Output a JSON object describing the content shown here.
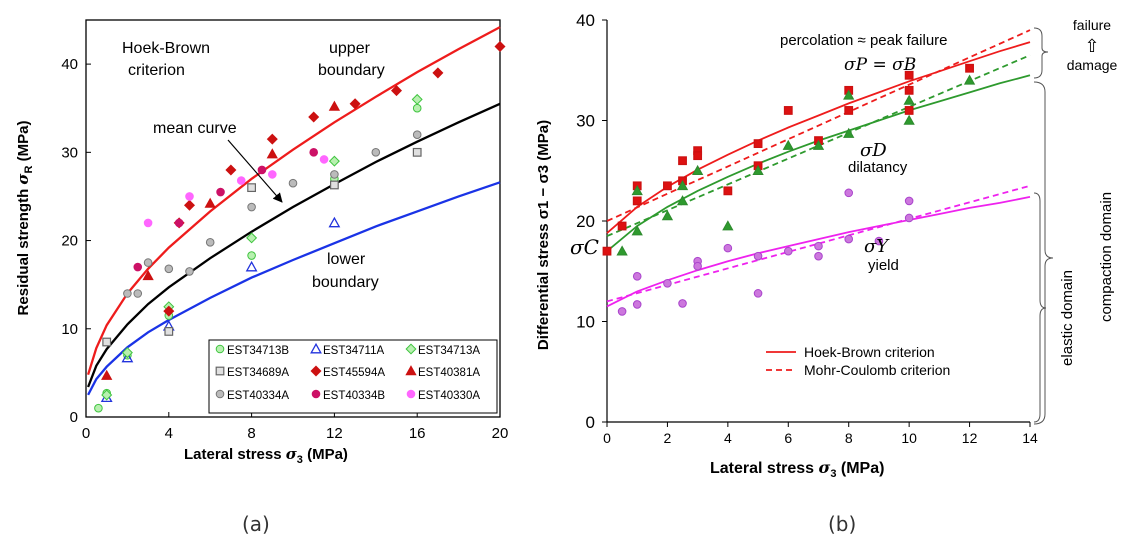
{
  "panel_labels": [
    "(a)",
    "(b)"
  ],
  "chart_data": [
    {
      "type": "scatter",
      "xlabel": "Lateral stress σ3 (MPa)",
      "ylabel": "Residual strength σR (MPa)",
      "xlim": [
        0,
        20
      ],
      "ylim": [
        0,
        45
      ],
      "x_ticks": [
        0,
        4,
        8,
        12,
        16,
        20
      ],
      "y_ticks": [
        0,
        10,
        20,
        30,
        40
      ],
      "grid": false,
      "legend_position": "bottom-right",
      "annotations": {
        "hoek_brown_1": "Hoek-Brown",
        "hoek_brown_2": "criterion",
        "upper_1": "upper",
        "upper_2": "boundary",
        "mean": "mean curve",
        "lower_1": "lower",
        "lower_2": "boundary"
      },
      "curves": [
        {
          "role": "upper boundary",
          "color": "#ee1c1c",
          "x": [
            0.1,
            0.5,
            1,
            2,
            3,
            4,
            6,
            8,
            10,
            12,
            14,
            16,
            18,
            20
          ],
          "y": [
            4.8,
            7.8,
            10.4,
            14.0,
            16.8,
            19.2,
            23.3,
            27.0,
            30.3,
            33.4,
            36.3,
            39.1,
            41.7,
            44.2
          ]
        },
        {
          "role": "mean curve",
          "color": "#000000",
          "x": [
            0.1,
            0.5,
            1,
            2,
            3,
            4,
            6,
            8,
            10,
            12,
            14,
            16,
            18,
            20
          ],
          "y": [
            3.4,
            5.8,
            7.7,
            10.5,
            12.8,
            14.7,
            18.0,
            21.0,
            23.8,
            26.4,
            28.9,
            31.2,
            33.4,
            35.5
          ]
        },
        {
          "role": "lower boundary",
          "color": "#1a33e6",
          "x": [
            0.1,
            0.5,
            1,
            2,
            3,
            4,
            6,
            8,
            10,
            12,
            14,
            16,
            18,
            20
          ],
          "y": [
            2.5,
            4.3,
            5.7,
            7.9,
            9.6,
            11.0,
            13.5,
            15.8,
            17.8,
            19.7,
            21.6,
            23.3,
            25.0,
            26.6
          ]
        }
      ],
      "series": [
        {
          "name": "EST34713B",
          "marker": "circle",
          "color": "#3fc43f",
          "fill": "#b8f0b0",
          "points": [
            [
              0.6,
              1.0
            ],
            [
              1,
              2.7
            ],
            [
              2,
              7.0
            ],
            [
              4,
              11.5
            ],
            [
              8,
              18.3
            ],
            [
              12,
              27.0
            ],
            [
              16,
              35.0
            ]
          ]
        },
        {
          "name": "EST34711A",
          "marker": "triangle-open",
          "color": "#2233dd",
          "fill": "none",
          "points": [
            [
              1,
              2.2
            ],
            [
              2,
              6.7
            ],
            [
              4,
              10.3
            ],
            [
              8,
              17.0
            ],
            [
              12,
              22.0
            ]
          ]
        },
        {
          "name": "EST34713A",
          "marker": "diamond",
          "color": "#3fc43f",
          "fill": "#b8f0b0",
          "points": [
            [
              1,
              2.5
            ],
            [
              2,
              7.3
            ],
            [
              4,
              12.5
            ],
            [
              8,
              20.3
            ],
            [
              12,
              29.0
            ],
            [
              16,
              36.0
            ]
          ]
        },
        {
          "name": "EST34689A",
          "marker": "square",
          "color": "#666666",
          "fill": "#e0e0e0",
          "points": [
            [
              1,
              8.5
            ],
            [
              4,
              9.7
            ],
            [
              8,
              26.0
            ],
            [
              12,
              26.3
            ],
            [
              16,
              30.0
            ]
          ]
        },
        {
          "name": "EST45594A",
          "marker": "diamond",
          "color": "#cc1111",
          "fill": "#cc1111",
          "points": [
            [
              4,
              12.0
            ],
            [
              4.5,
              22.0
            ],
            [
              5,
              24.0
            ],
            [
              7,
              28.0
            ],
            [
              9,
              31.5
            ],
            [
              11,
              34.0
            ],
            [
              13,
              35.5
            ],
            [
              15,
              37.0
            ],
            [
              17,
              39.0
            ],
            [
              20,
              42.0
            ]
          ]
        },
        {
          "name": "EST40381A",
          "marker": "triangle",
          "color": "#cc1111",
          "fill": "#cc1111",
          "points": [
            [
              1,
              4.7
            ],
            [
              3,
              16.0
            ],
            [
              6,
              24.2
            ],
            [
              9,
              29.8
            ],
            [
              12,
              35.2
            ]
          ]
        },
        {
          "name": "EST40334A",
          "marker": "circle",
          "color": "#777777",
          "fill": "#bbbbbb",
          "points": [
            [
              2,
              14.0
            ],
            [
              2.5,
              14.0
            ],
            [
              3,
              17.5
            ],
            [
              4,
              16.8
            ],
            [
              5,
              16.5
            ],
            [
              6,
              19.8
            ],
            [
              8,
              23.8
            ],
            [
              10,
              26.5
            ],
            [
              12,
              27.5
            ],
            [
              14,
              30.0
            ],
            [
              16,
              32.0
            ]
          ]
        },
        {
          "name": "EST40334B",
          "marker": "circle",
          "color": "#cc1166",
          "fill": "#cc1166",
          "points": [
            [
              2.5,
              17.0
            ],
            [
              4.5,
              22.0
            ],
            [
              6.5,
              25.5
            ],
            [
              8.5,
              28.0
            ],
            [
              11,
              30.0
            ]
          ]
        },
        {
          "name": "EST40330A",
          "marker": "circle",
          "color": "#ff66ff",
          "fill": "#ff66ff",
          "points": [
            [
              3,
              22.0
            ],
            [
              5,
              25.0
            ],
            [
              7.5,
              26.8
            ],
            [
              9,
              27.5
            ],
            [
              11.5,
              29.2
            ]
          ]
        }
      ]
    },
    {
      "type": "scatter",
      "xlabel": "Lateral stress σ3 (MPa)",
      "ylabel": "Differential stress σ1 − σ3 (MPa)",
      "xlim": [
        0,
        14
      ],
      "ylim": [
        0,
        40
      ],
      "x_ticks": [
        0,
        2,
        4,
        6,
        8,
        10,
        12,
        14
      ],
      "y_ticks": [
        0,
        10,
        20,
        30,
        40
      ],
      "grid": false,
      "legend_position": "bottom-center",
      "legend": [
        {
          "label": "Hoek-Brown criterion",
          "style": "solid",
          "color": "#ee1c1c"
        },
        {
          "label": "Mohr-Coulomb criterion",
          "style": "dashed",
          "color": "#ee1c1c"
        }
      ],
      "annotations": {
        "percolation": "percolation ≈ peak failure",
        "sigma_p": "σP = σB",
        "sigma_d": "σD",
        "dilatancy": "dilatancy",
        "sigma_y": "σY",
        "yield": "yield",
        "sigma_c": "σC",
        "failure": "failure",
        "arrow": "⇧",
        "damage": "damage",
        "compaction_domain": "compaction domain",
        "elastic_domain": "elastic domain"
      },
      "curves": [
        {
          "role": "peak Hoek-Brown",
          "style": "solid",
          "color": "#ee1c1c",
          "x": [
            0,
            1,
            2,
            3,
            4,
            5,
            6,
            7,
            8,
            9,
            10,
            11,
            12,
            13,
            14
          ],
          "y": [
            18.8,
            21.4,
            23.4,
            25.1,
            26.6,
            28.0,
            29.3,
            30.5,
            31.7,
            32.8,
            33.9,
            34.9,
            35.9,
            36.9,
            37.8
          ]
        },
        {
          "role": "peak Mohr-Coulomb",
          "style": "dashed",
          "color": "#ee1c1c",
          "x": [
            0,
            14
          ],
          "y": [
            20.0,
            39.0
          ]
        },
        {
          "role": "dilatancy Hoek-Brown",
          "style": "solid",
          "color": "#2e9a2e",
          "x": [
            0,
            1,
            2,
            3,
            4,
            5,
            6,
            7,
            8,
            9,
            10,
            11,
            12,
            13,
            14
          ],
          "y": [
            17.0,
            19.5,
            21.4,
            23.0,
            24.4,
            25.7,
            26.9,
            28.0,
            29.0,
            30.0,
            31.0,
            31.9,
            32.8,
            33.7,
            34.5
          ]
        },
        {
          "role": "dilatancy Mohr-Coulomb",
          "style": "dashed",
          "color": "#2e9a2e",
          "x": [
            0,
            14
          ],
          "y": [
            18.5,
            36.5
          ]
        },
        {
          "role": "yield Hoek-Brown",
          "style": "solid",
          "color": "#ee22ee",
          "x": [
            0,
            1,
            2,
            3,
            4,
            5,
            6,
            7,
            8,
            9,
            10,
            11,
            12,
            13,
            14
          ],
          "y": [
            11.5,
            13.0,
            14.1,
            15.1,
            16.0,
            16.8,
            17.5,
            18.2,
            18.9,
            19.5,
            20.1,
            20.7,
            21.3,
            21.8,
            22.4
          ]
        },
        {
          "role": "yield Mohr-Coulomb",
          "style": "dashed",
          "color": "#ee22ee",
          "x": [
            0,
            14
          ],
          "y": [
            12.0,
            23.5
          ]
        }
      ],
      "series": [
        {
          "role": "peak",
          "marker": "square",
          "color": "#cc1111",
          "fill": "#dd1111",
          "points": [
            [
              0,
              17.0
            ],
            [
              0.5,
              19.5
            ],
            [
              1,
              23.5
            ],
            [
              1,
              22.0
            ],
            [
              2,
              23.5
            ],
            [
              2.5,
              26.0
            ],
            [
              2.5,
              24.0
            ],
            [
              3,
              27.0
            ],
            [
              3,
              26.5
            ],
            [
              4,
              23.0
            ],
            [
              5,
              27.7
            ],
            [
              5,
              25.5
            ],
            [
              6,
              31.0
            ],
            [
              7,
              28.0
            ],
            [
              8,
              33.0
            ],
            [
              8,
              31.0
            ],
            [
              10,
              34.5
            ],
            [
              10,
              33.0
            ],
            [
              10,
              31.0
            ],
            [
              12,
              35.2
            ]
          ]
        },
        {
          "role": "dilatancy",
          "marker": "triangle",
          "color": "#2e8a2e",
          "fill": "#2e9a2e",
          "points": [
            [
              0.5,
              17.0
            ],
            [
              1,
              23.0
            ],
            [
              1,
              19.0
            ],
            [
              2,
              20.5
            ],
            [
              2.5,
              22.0
            ],
            [
              2.5,
              23.5
            ],
            [
              3,
              25.0
            ],
            [
              4,
              19.5
            ],
            [
              5,
              25.0
            ],
            [
              6,
              27.5
            ],
            [
              7,
              27.5
            ],
            [
              8,
              28.7
            ],
            [
              8,
              32.5
            ],
            [
              10,
              32.0
            ],
            [
              10,
              30.0
            ],
            [
              12,
              34.0
            ]
          ]
        },
        {
          "role": "yield",
          "marker": "circle",
          "color": "#aa44cc",
          "fill": "#cc77dd",
          "points": [
            [
              0.5,
              11.0
            ],
            [
              1,
              14.5
            ],
            [
              1,
              11.7
            ],
            [
              2,
              13.8
            ],
            [
              2.5,
              11.8
            ],
            [
              3,
              16.0
            ],
            [
              3,
              15.5
            ],
            [
              4,
              17.3
            ],
            [
              5,
              12.8
            ],
            [
              5,
              16.5
            ],
            [
              6,
              17.0
            ],
            [
              7,
              17.5
            ],
            [
              7,
              16.5
            ],
            [
              8,
              22.8
            ],
            [
              8,
              18.2
            ],
            [
              9,
              18.0
            ],
            [
              10,
              22.0
            ],
            [
              10,
              20.3
            ]
          ]
        }
      ]
    }
  ]
}
